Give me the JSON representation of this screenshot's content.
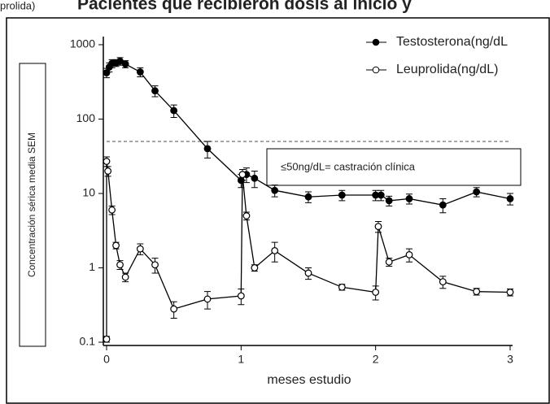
{
  "chart_data": {
    "type": "line",
    "header_fragment": "prolida)",
    "title": "Pacientes que recibieron dosis al inicio y",
    "xlabel": "meses estudio",
    "ylabel": "Concentración sérica media SEM",
    "annotation": "≤50ng/dL= castración clínica",
    "threshold": 50,
    "xlim": [
      0,
      3
    ],
    "xticks": [
      0,
      1,
      2,
      3
    ],
    "ylim": [
      0.1,
      1000
    ],
    "yticks": [
      0.1,
      1,
      10,
      100,
      1000
    ],
    "log_y": true,
    "legend": "upper right",
    "series": [
      {
        "name": "Testosterona(ng/dL",
        "color": "#000000",
        "marker": "filled",
        "x": [
          0,
          0.02,
          0.04,
          0.07,
          0.1,
          0.14,
          0.25,
          0.36,
          0.5,
          0.75,
          1,
          1.04,
          1.1,
          1.25,
          1.5,
          1.75,
          2,
          2.04,
          2.1,
          2.25,
          2.5,
          2.75,
          3
        ],
        "values": [
          420,
          500,
          560,
          570,
          600,
          550,
          430,
          240,
          130,
          40,
          15,
          18,
          16,
          11,
          9,
          9.5,
          9.5,
          9.5,
          8,
          8.5,
          7,
          10.5,
          8.5
        ],
        "errors": [
          60,
          70,
          70,
          60,
          70,
          60,
          60,
          40,
          25,
          10,
          3,
          4,
          4,
          2,
          1.5,
          1.5,
          1.5,
          1.5,
          1.2,
          1.3,
          1.5,
          1.5,
          1.5
        ]
      },
      {
        "name": "Leuprolida(ng/dL)",
        "color": "#000000",
        "marker": "open",
        "x": [
          0,
          0,
          0.01,
          0.04,
          0.07,
          0.1,
          0.14,
          0.25,
          0.36,
          0.5,
          0.75,
          1,
          1.01,
          1.04,
          1.1,
          1.25,
          1.5,
          1.75,
          2,
          2.02,
          2.1,
          2.25,
          2.5,
          2.75,
          3
        ],
        "values": [
          0.11,
          27,
          20,
          6,
          2,
          1.1,
          0.75,
          1.8,
          1.1,
          0.28,
          0.38,
          0.42,
          18,
          5,
          1.0,
          1.7,
          0.85,
          0.55,
          0.47,
          3.6,
          1.2,
          1.5,
          0.65,
          0.48,
          0.47
        ],
        "errors": [
          0.01,
          4,
          3,
          0.8,
          0.2,
          0.15,
          0.1,
          0.3,
          0.25,
          0.07,
          0.1,
          0.1,
          3,
          0.6,
          0.1,
          0.5,
          0.15,
          0.05,
          0.1,
          0.6,
          0.15,
          0.3,
          0.12,
          0.05,
          0.05
        ]
      }
    ]
  }
}
